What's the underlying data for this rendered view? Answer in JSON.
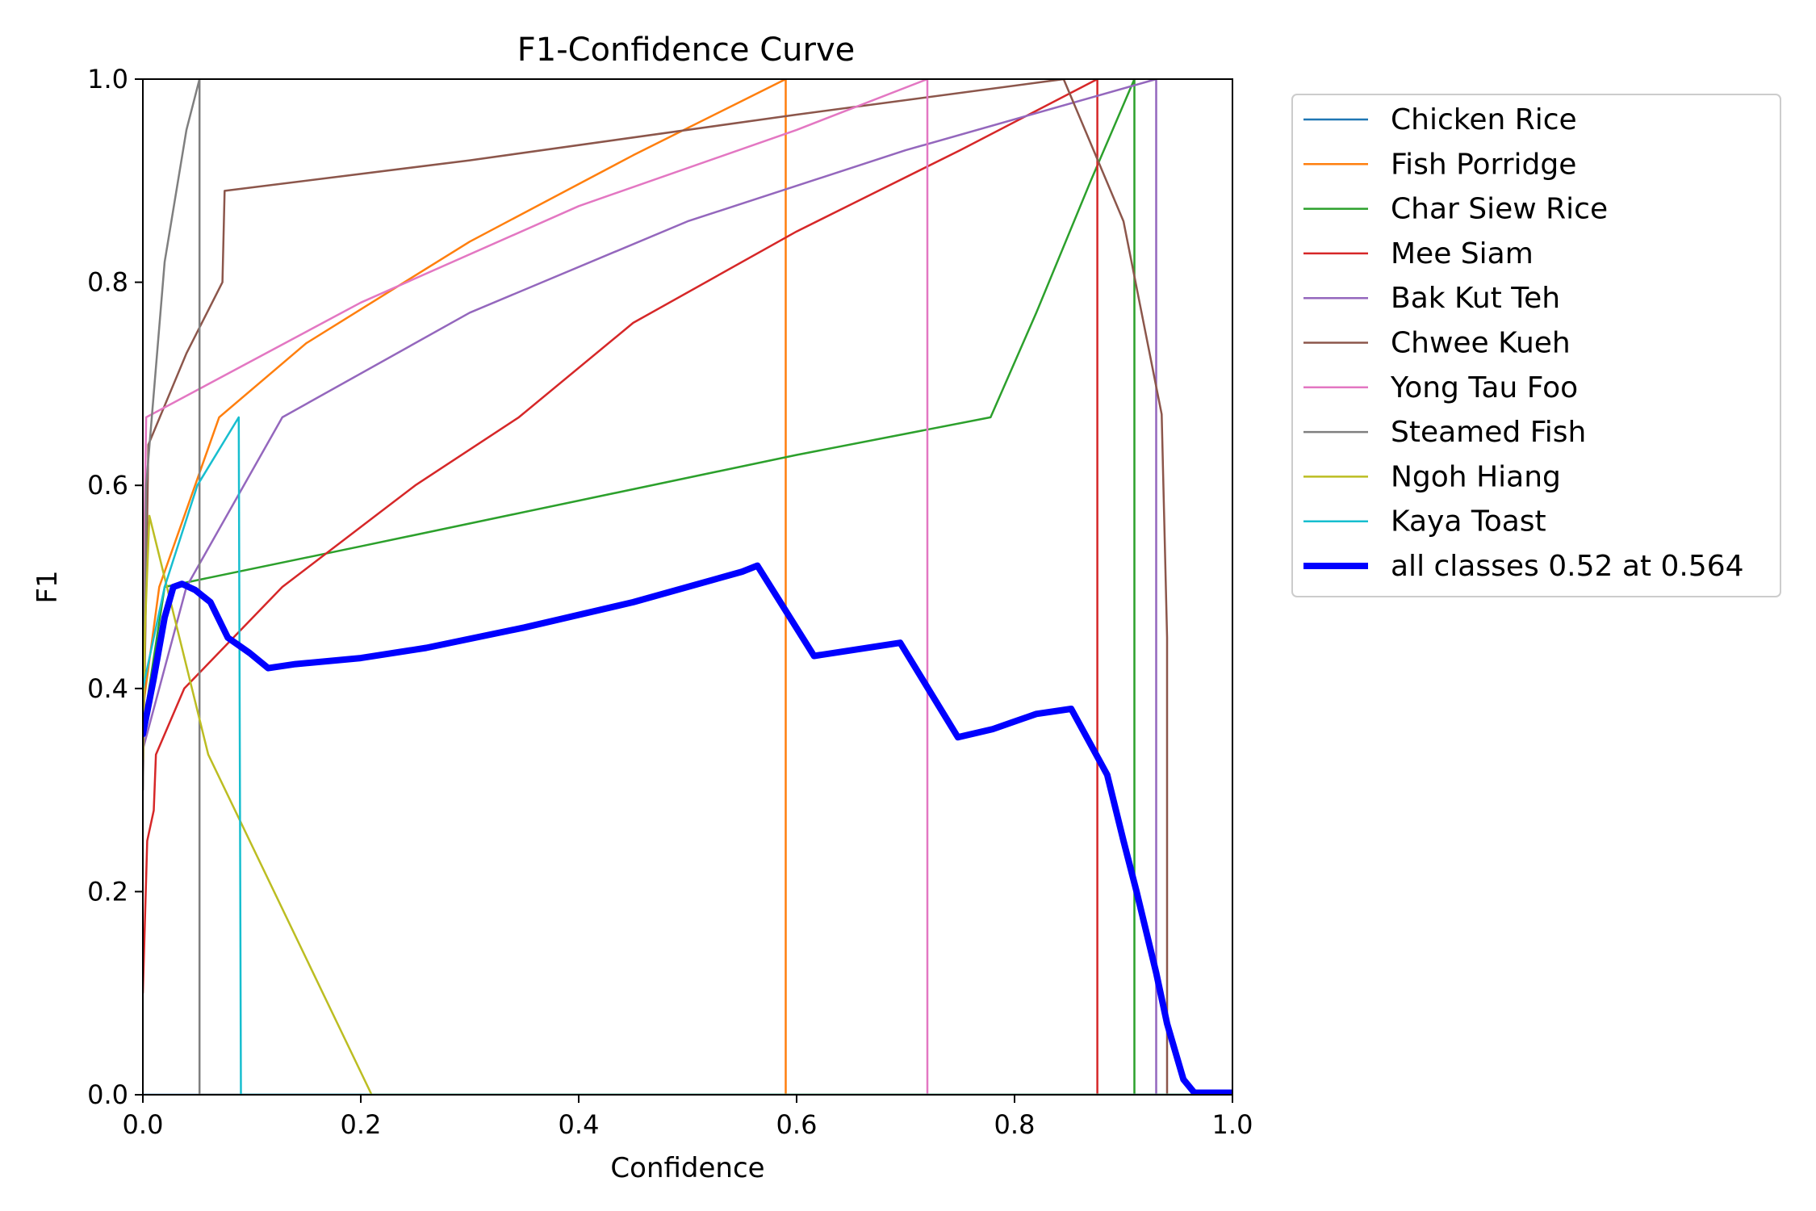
{
  "chart_data": {
    "type": "line",
    "title": "F1-Confidence Curve",
    "xlabel": "Confidence",
    "ylabel": "F1",
    "xlim": [
      0,
      1
    ],
    "ylim": [
      0,
      1
    ],
    "xticks": [
      "0.0",
      "0.2",
      "0.4",
      "0.6",
      "0.8",
      "1.0"
    ],
    "yticks": [
      "0.0",
      "0.2",
      "0.4",
      "0.6",
      "0.8",
      "1.0"
    ],
    "grid": false,
    "legend_position": "outside-upper-right",
    "series": [
      {
        "name": "Chicken Rice",
        "color": "#1f77b4",
        "points": [
          [
            0,
            0
          ],
          [
            1,
            0
          ]
        ]
      },
      {
        "name": "Fish Porridge",
        "color": "#ff7f0e",
        "points": [
          [
            0.0,
            0.38
          ],
          [
            0.015,
            0.5
          ],
          [
            0.07,
            0.667
          ],
          [
            0.15,
            0.74
          ],
          [
            0.3,
            0.84
          ],
          [
            0.45,
            0.925
          ],
          [
            0.59,
            1.0
          ],
          [
            0.59,
            0.0
          ],
          [
            1.0,
            0.0
          ]
        ]
      },
      {
        "name": "Char Siew Rice",
        "color": "#2ca02c",
        "points": [
          [
            0.0,
            0.36
          ],
          [
            0.02,
            0.5
          ],
          [
            0.2,
            0.54
          ],
          [
            0.4,
            0.585
          ],
          [
            0.6,
            0.63
          ],
          [
            0.778,
            0.667
          ],
          [
            0.82,
            0.77
          ],
          [
            0.87,
            0.9
          ],
          [
            0.91,
            1.0
          ],
          [
            0.91,
            0.0
          ],
          [
            1.0,
            0.0
          ]
        ]
      },
      {
        "name": "Mee Siam",
        "color": "#d62728",
        "points": [
          [
            0.0,
            0.1
          ],
          [
            0.004,
            0.25
          ],
          [
            0.01,
            0.28
          ],
          [
            0.012,
            0.335
          ],
          [
            0.038,
            0.4
          ],
          [
            0.128,
            0.5
          ],
          [
            0.25,
            0.6
          ],
          [
            0.345,
            0.667
          ],
          [
            0.45,
            0.76
          ],
          [
            0.6,
            0.85
          ],
          [
            0.75,
            0.93
          ],
          [
            0.876,
            1.0
          ],
          [
            0.876,
            0.0
          ],
          [
            1.0,
            0.0
          ]
        ]
      },
      {
        "name": "Bak Kut Teh",
        "color": "#9467bd",
        "points": [
          [
            0.0,
            0.34
          ],
          [
            0.04,
            0.5
          ],
          [
            0.128,
            0.667
          ],
          [
            0.3,
            0.77
          ],
          [
            0.5,
            0.86
          ],
          [
            0.7,
            0.93
          ],
          [
            0.93,
            1.0
          ],
          [
            0.93,
            0.0
          ],
          [
            1.0,
            0.0
          ]
        ]
      },
      {
        "name": "Chwee Kueh",
        "color": "#8c564b",
        "points": [
          [
            0.0,
            0.3
          ],
          [
            0.005,
            0.64
          ],
          [
            0.04,
            0.73
          ],
          [
            0.073,
            0.8
          ],
          [
            0.075,
            0.89
          ],
          [
            0.3,
            0.92
          ],
          [
            0.6,
            0.965
          ],
          [
            0.845,
            1.0
          ],
          [
            0.9,
            0.86
          ],
          [
            0.935,
            0.67
          ],
          [
            0.94,
            0.45
          ],
          [
            0.94,
            0.0
          ],
          [
            1.0,
            0.0
          ]
        ]
      },
      {
        "name": "Yong Tau Foo",
        "color": "#e377c2",
        "points": [
          [
            0.0,
            0.45
          ],
          [
            0.003,
            0.667
          ],
          [
            0.2,
            0.78
          ],
          [
            0.4,
            0.875
          ],
          [
            0.6,
            0.95
          ],
          [
            0.72,
            1.0
          ],
          [
            0.72,
            0.0
          ],
          [
            1.0,
            0.0
          ]
        ]
      },
      {
        "name": "Steamed Fish",
        "color": "#7f7f7f",
        "points": [
          [
            0.0,
            0.3
          ],
          [
            0.003,
            0.6
          ],
          [
            0.02,
            0.82
          ],
          [
            0.04,
            0.95
          ],
          [
            0.052,
            1.0
          ],
          [
            0.052,
            0.0
          ],
          [
            1.0,
            0.0
          ]
        ]
      },
      {
        "name": "Ngoh Hiang",
        "color": "#bcbd22",
        "points": [
          [
            0.0,
            0.33
          ],
          [
            0.002,
            0.46
          ],
          [
            0.006,
            0.57
          ],
          [
            0.06,
            0.335
          ],
          [
            0.21,
            0.0
          ],
          [
            1.0,
            0.0
          ]
        ]
      },
      {
        "name": "Kaya Toast",
        "color": "#17becf",
        "points": [
          [
            0.0,
            0.4
          ],
          [
            0.02,
            0.5
          ],
          [
            0.05,
            0.6
          ],
          [
            0.088,
            0.667
          ],
          [
            0.09,
            0.0
          ],
          [
            1.0,
            0.0
          ]
        ]
      },
      {
        "name": "all classes 0.52 at 0.564",
        "color": "#0000ff",
        "bold": true,
        "points": [
          [
            0.0,
            0.355
          ],
          [
            0.01,
            0.41
          ],
          [
            0.02,
            0.47
          ],
          [
            0.028,
            0.5
          ],
          [
            0.036,
            0.503
          ],
          [
            0.048,
            0.497
          ],
          [
            0.062,
            0.485
          ],
          [
            0.078,
            0.45
          ],
          [
            0.098,
            0.435
          ],
          [
            0.115,
            0.42
          ],
          [
            0.14,
            0.424
          ],
          [
            0.2,
            0.43
          ],
          [
            0.26,
            0.44
          ],
          [
            0.35,
            0.46
          ],
          [
            0.45,
            0.485
          ],
          [
            0.55,
            0.515
          ],
          [
            0.564,
            0.521
          ],
          [
            0.616,
            0.432
          ],
          [
            0.695,
            0.445
          ],
          [
            0.748,
            0.352
          ],
          [
            0.78,
            0.36
          ],
          [
            0.82,
            0.375
          ],
          [
            0.852,
            0.38
          ],
          [
            0.885,
            0.315
          ],
          [
            0.9,
            0.25
          ],
          [
            0.912,
            0.2
          ],
          [
            0.93,
            0.12
          ],
          [
            0.94,
            0.07
          ],
          [
            0.955,
            0.015
          ],
          [
            0.965,
            0.002
          ],
          [
            1.0,
            0.002
          ]
        ]
      }
    ]
  }
}
